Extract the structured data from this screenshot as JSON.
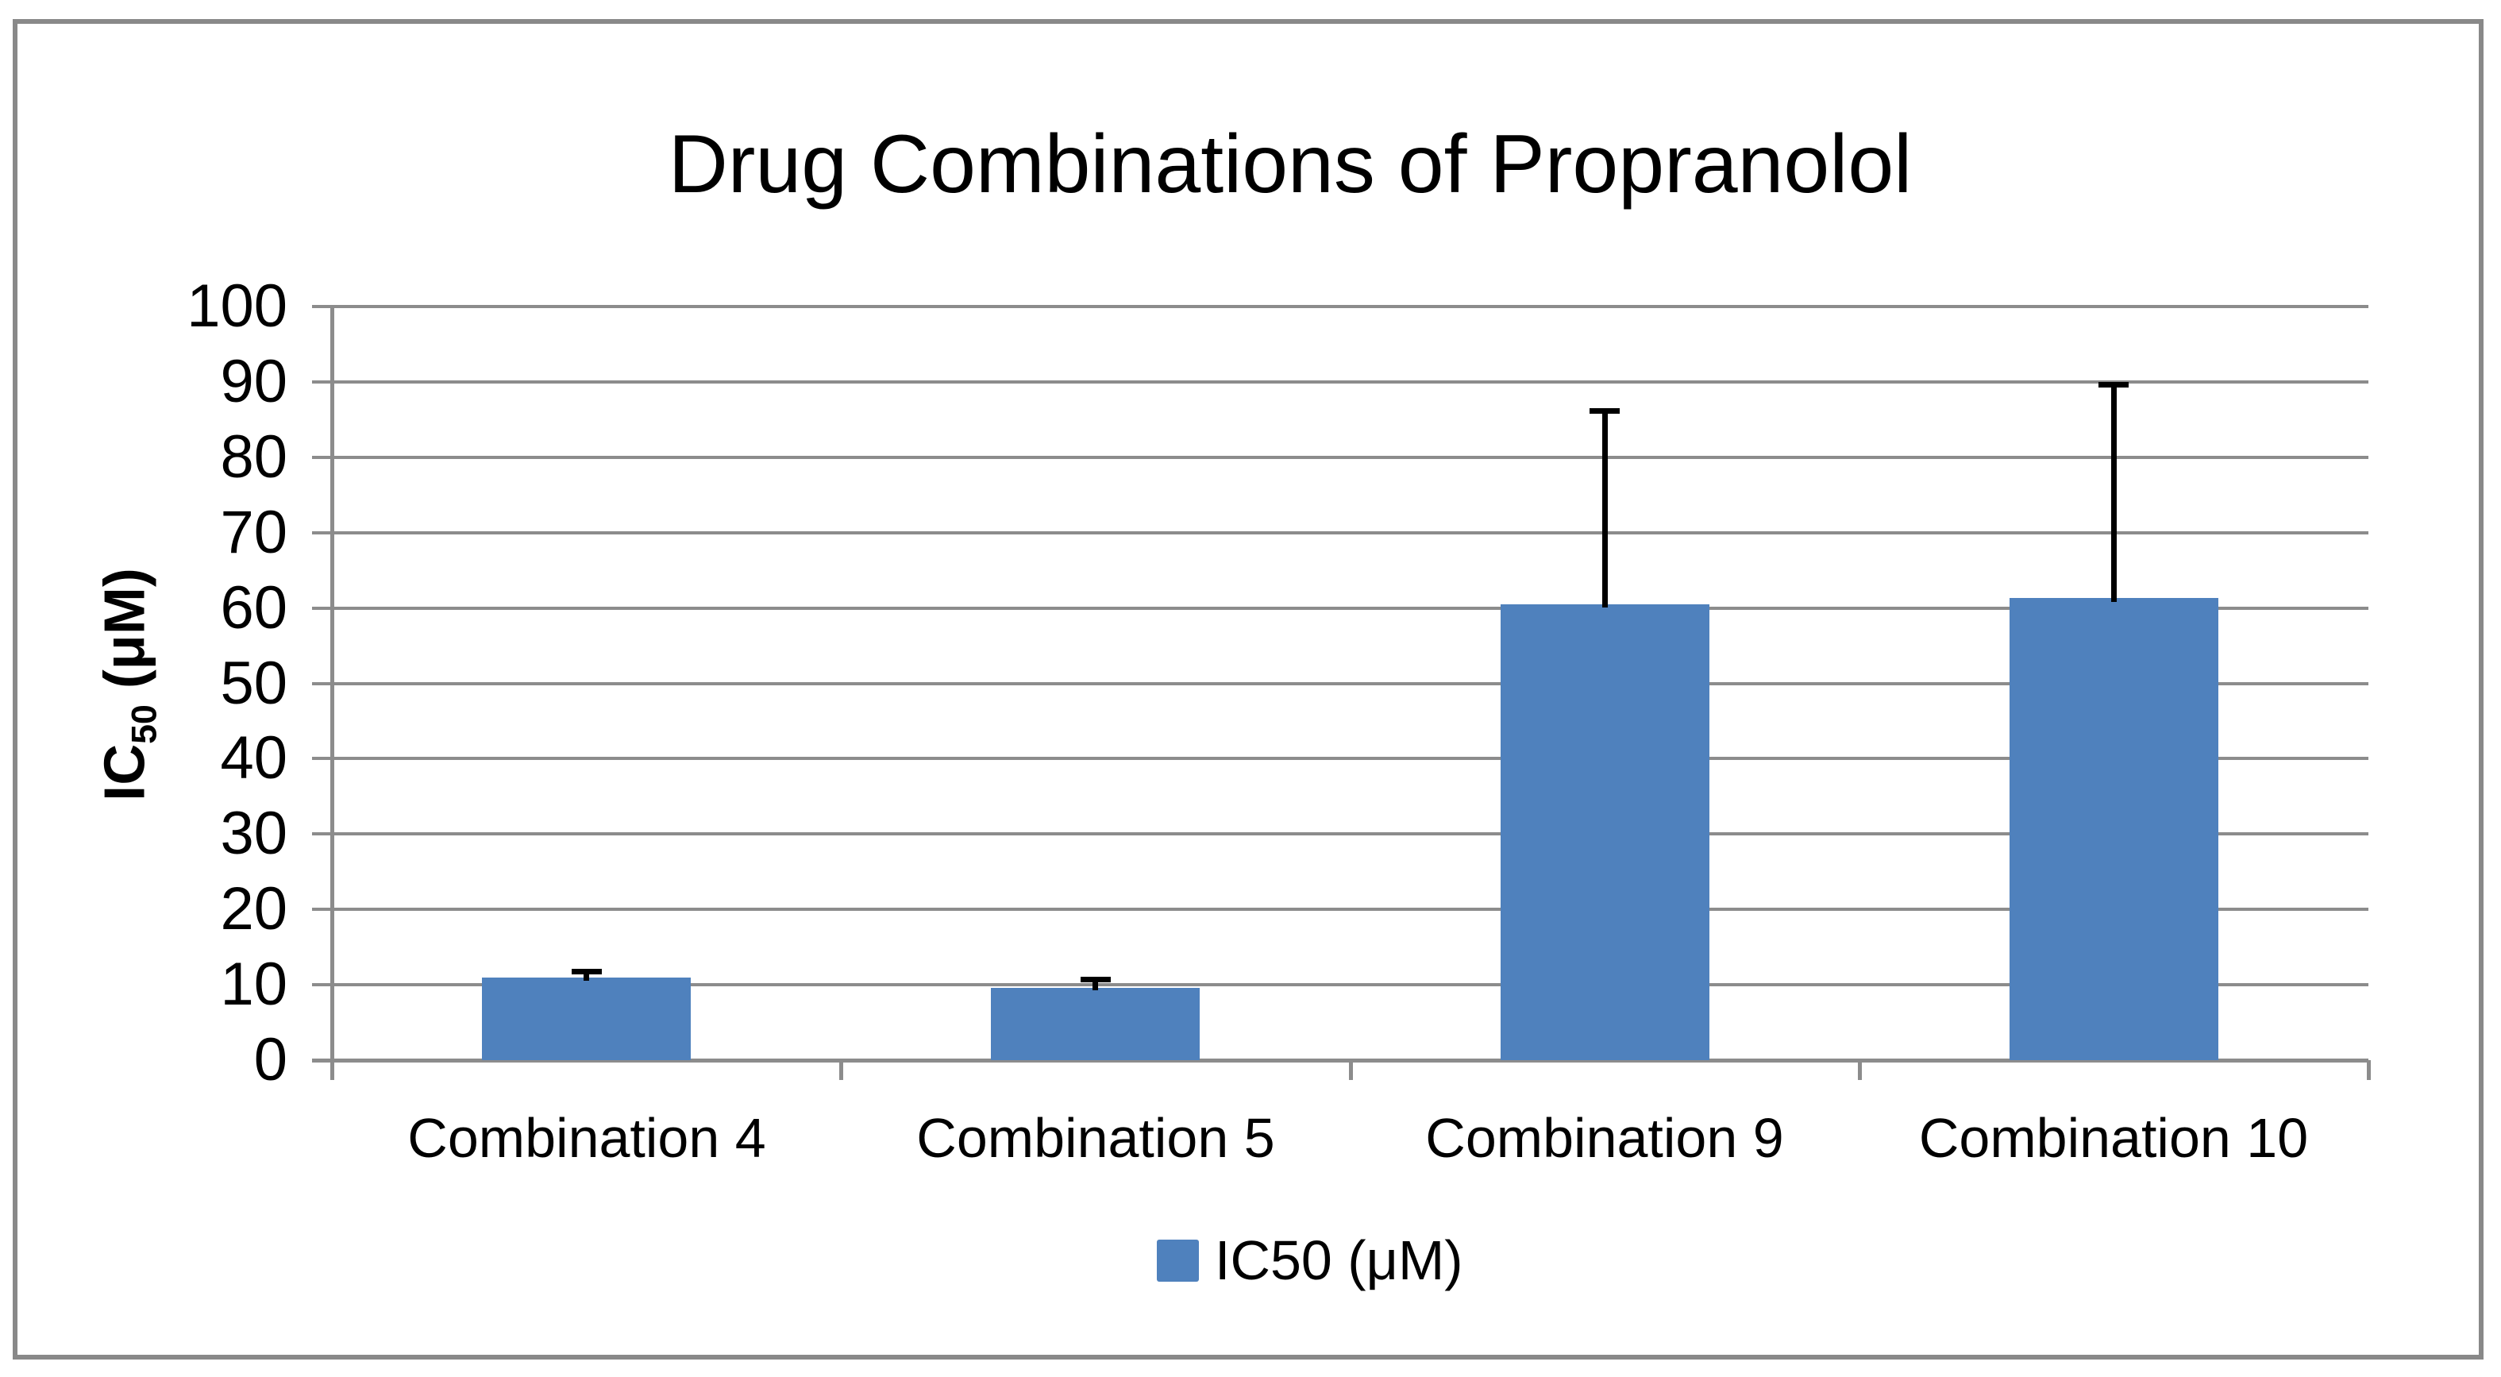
{
  "chart_data": {
    "type": "bar",
    "title": "Drug Combinations of Propranolol",
    "categories": [
      "Combination 4",
      "Combination 5",
      "Combination 9",
      "Combination 10"
    ],
    "series": [
      {
        "name": "IC50 (μM)",
        "values": [
          11,
          9.6,
          60.5,
          61.3
        ],
        "errors_plus": [
          0.7,
          1.1,
          25.6,
          28.3
        ]
      }
    ],
    "xlabel": "",
    "ylabel": {
      "prefix": "IC",
      "subscript": "50",
      "suffix": " (μM)"
    },
    "ylim": [
      0,
      100
    ],
    "yticks": [
      0,
      10,
      20,
      30,
      40,
      50,
      60,
      70,
      80,
      90,
      100
    ],
    "grid": "horizontal",
    "legend_position": "bottom-center",
    "colors": {
      "bar": "#4F81BD",
      "gridline": "#8C8C8C",
      "axis": "#8C8C8C",
      "error_bar": "#000000",
      "frame": "#898989",
      "text": "#000000",
      "background": "#FFFFFF"
    }
  },
  "legend": {
    "label": "IC50 (μM)"
  }
}
